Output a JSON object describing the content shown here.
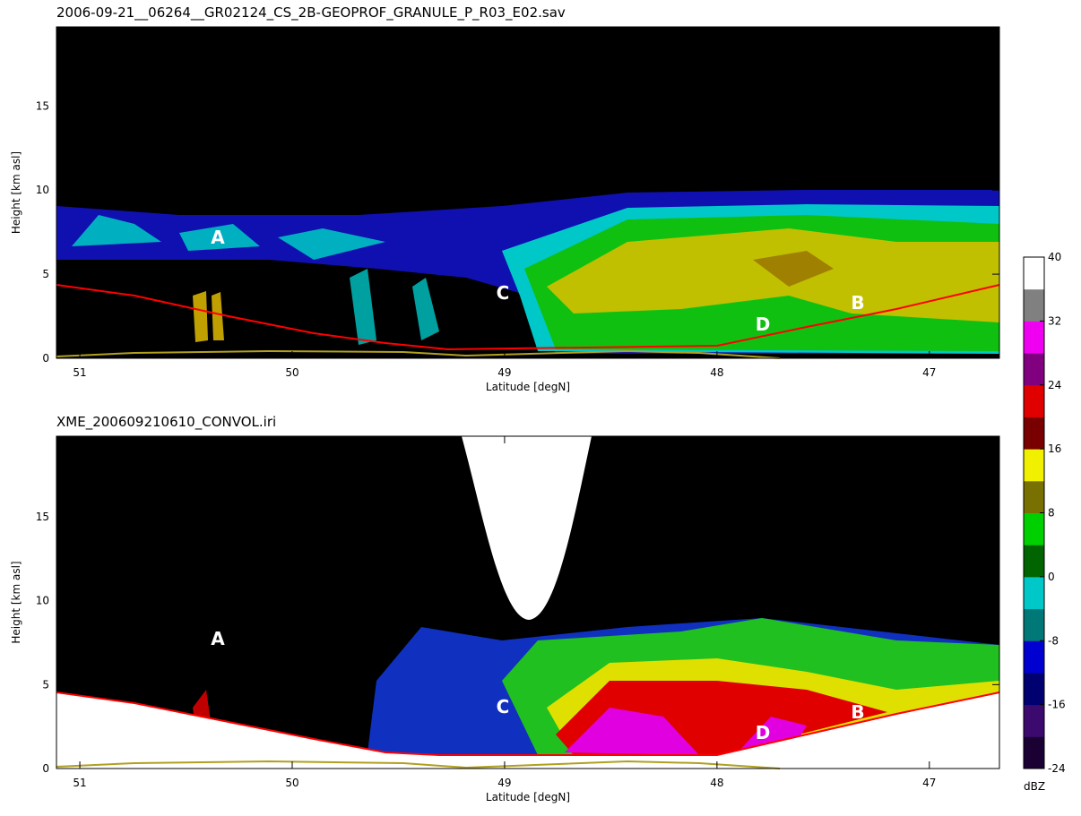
{
  "chart_data": [
    {
      "type": "radar-section",
      "title": "2006-09-21__06264__GR02124_CS_2B-GEOPROF_GRANULE_P_R03_E02.sav",
      "x_label": "Latitude [degN]",
      "y_label": "Height [km asl]",
      "xlim": [
        51.11,
        46.67
      ],
      "xticks": [
        51,
        50,
        49,
        48,
        47
      ],
      "ylim": [
        0,
        19.7
      ],
      "yticks": [
        0,
        5,
        10,
        15
      ],
      "annotations": [
        "A",
        "B",
        "C",
        "D"
      ]
    },
    {
      "type": "radar-section",
      "title": "XME_200609210610_CONVOL.iri",
      "x_label": "Latitude [degN]",
      "y_label": "Height [km asl]",
      "xlim": [
        51.11,
        46.67
      ],
      "xticks": [
        51,
        50,
        49,
        48,
        47
      ],
      "ylim": [
        0,
        19.8
      ],
      "yticks": [
        0,
        5,
        10,
        15
      ],
      "annotations": [
        "A",
        "B",
        "C",
        "D"
      ]
    },
    {
      "type": "colorbar",
      "label": "dBZ",
      "ylim": [
        -24,
        40
      ],
      "yticks": [
        -24,
        -16,
        -8,
        0,
        8,
        16,
        24,
        32,
        40
      ],
      "colors": [
        "#1a0033",
        "#3c0a6e",
        "#000070",
        "#0000d0",
        "#007878",
        "#00c8c8",
        "#006400",
        "#00d000",
        "#787000",
        "#f0f000",
        "#780000",
        "#e00000",
        "#800080",
        "#f000f0",
        "#808080",
        "#ffffff"
      ]
    }
  ]
}
